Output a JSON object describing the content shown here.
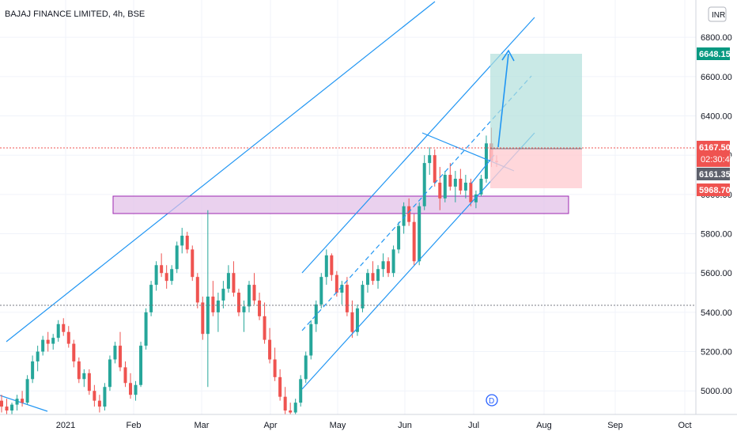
{
  "header": {
    "title": "BAJAJ FINANCE LIMITED, 4h, BSE",
    "currency": "INR"
  },
  "colors": {
    "up": "#26a69a",
    "down": "#ef5350",
    "trendline": "#2196f3",
    "zone_fill": "#e1bee7",
    "zone_stroke": "#9c27b0",
    "target_fill": "#b2dfdb",
    "stop_fill": "#ffcdd2",
    "axis_bg": "#ffffff",
    "grid": "#f0f3fa"
  },
  "price_tags": {
    "target": "6648.15",
    "last": "6167.50",
    "countdown": "02:30:49",
    "entry": "6161.35",
    "stop": "5968.70"
  },
  "marker": {
    "label": "D"
  },
  "chart_data": {
    "type": "candlestick",
    "title": "BAJAJ FINANCE LIMITED, 4h, BSE",
    "ylim": [
      4880,
      6990
    ],
    "y_ticks": [
      "5000.00",
      "5200.00",
      "5400.00",
      "5600.00",
      "5800.00",
      "6000.00",
      "6200.00",
      "6400.00",
      "6600.00",
      "6800.00"
    ],
    "x_ticks": [
      "2021",
      "Feb",
      "Mar",
      "Apr",
      "May",
      "Jun",
      "Jul",
      "Aug",
      "Sep",
      "Oct"
    ],
    "horizontal_levels": [
      6167.5,
      5370
    ],
    "series": [
      {
        "values": [
          [
            4950,
            4980,
            4890,
            4920
          ],
          [
            4920,
            4960,
            4860,
            4900
          ],
          [
            4900,
            4940,
            4870,
            4930
          ],
          [
            4930,
            4980,
            4900,
            4960
          ],
          [
            4960,
            5000,
            4920,
            4940
          ],
          [
            4940,
            5080,
            4930,
            5060
          ],
          [
            5060,
            5180,
            5040,
            5150
          ],
          [
            5150,
            5230,
            5100,
            5200
          ],
          [
            5200,
            5280,
            5180,
            5260
          ],
          [
            5260,
            5300,
            5200,
            5240
          ],
          [
            5240,
            5290,
            5210,
            5270
          ],
          [
            5270,
            5360,
            5250,
            5340
          ],
          [
            5340,
            5370,
            5280,
            5300
          ],
          [
            5300,
            5330,
            5220,
            5240
          ],
          [
            5240,
            5260,
            5120,
            5150
          ],
          [
            5150,
            5170,
            5040,
            5060
          ],
          [
            5060,
            5110,
            5020,
            5090
          ],
          [
            5090,
            5110,
            4980,
            5000
          ],
          [
            5000,
            5030,
            4920,
            4950
          ],
          [
            4950,
            4980,
            4890,
            4920
          ],
          [
            4920,
            5040,
            4900,
            5020
          ],
          [
            5020,
            5180,
            5000,
            5160
          ],
          [
            5160,
            5250,
            5140,
            5230
          ],
          [
            5230,
            5300,
            5100,
            5120
          ],
          [
            5120,
            5150,
            5020,
            5040
          ],
          [
            5040,
            5090,
            4960,
            4980
          ],
          [
            4980,
            5050,
            4950,
            5030
          ],
          [
            5030,
            5250,
            5020,
            5230
          ],
          [
            5230,
            5420,
            5210,
            5400
          ],
          [
            5400,
            5560,
            5380,
            5540
          ],
          [
            5540,
            5660,
            5510,
            5640
          ],
          [
            5640,
            5700,
            5580,
            5600
          ],
          [
            5600,
            5640,
            5520,
            5560
          ],
          [
            5560,
            5640,
            5540,
            5620
          ],
          [
            5620,
            5760,
            5600,
            5740
          ],
          [
            5740,
            5830,
            5700,
            5790
          ],
          [
            5790,
            5810,
            5700,
            5720
          ],
          [
            5720,
            5740,
            5560,
            5580
          ],
          [
            5580,
            5600,
            5420,
            5450
          ],
          [
            5450,
            5480,
            5260,
            5290
          ],
          [
            5290,
            5920,
            5020,
            5480
          ],
          [
            5480,
            5560,
            5380,
            5400
          ],
          [
            5400,
            5500,
            5300,
            5460
          ],
          [
            5460,
            5560,
            5420,
            5520
          ],
          [
            5520,
            5640,
            5500,
            5600
          ],
          [
            5600,
            5660,
            5480,
            5500
          ],
          [
            5500,
            5520,
            5380,
            5400
          ],
          [
            5400,
            5460,
            5300,
            5430
          ],
          [
            5430,
            5560,
            5400,
            5540
          ],
          [
            5540,
            5600,
            5440,
            5460
          ],
          [
            5460,
            5500,
            5360,
            5380
          ],
          [
            5380,
            5450,
            5240,
            5260
          ],
          [
            5260,
            5320,
            5140,
            5160
          ],
          [
            5160,
            5220,
            5050,
            5070
          ],
          [
            5070,
            5110,
            4950,
            4970
          ],
          [
            4970,
            5020,
            4880,
            4900
          ],
          [
            4900,
            4940,
            4860,
            4890
          ],
          [
            4890,
            4960,
            4880,
            4940
          ],
          [
            4940,
            5080,
            4920,
            5060
          ],
          [
            5060,
            5200,
            5040,
            5180
          ],
          [
            5180,
            5360,
            5160,
            5340
          ],
          [
            5340,
            5460,
            5300,
            5440
          ],
          [
            5440,
            5600,
            5420,
            5580
          ],
          [
            5580,
            5720,
            5540,
            5690
          ],
          [
            5690,
            5700,
            5560,
            5590
          ],
          [
            5590,
            5610,
            5480,
            5500
          ],
          [
            5500,
            5560,
            5440,
            5540
          ],
          [
            5540,
            5580,
            5380,
            5400
          ],
          [
            5400,
            5460,
            5270,
            5300
          ],
          [
            5300,
            5440,
            5280,
            5420
          ],
          [
            5420,
            5560,
            5400,
            5540
          ],
          [
            5540,
            5620,
            5500,
            5600
          ],
          [
            5600,
            5660,
            5540,
            5560
          ],
          [
            5560,
            5640,
            5520,
            5620
          ],
          [
            5620,
            5700,
            5580,
            5660
          ],
          [
            5660,
            5680,
            5580,
            5600
          ],
          [
            5600,
            5740,
            5580,
            5720
          ],
          [
            5720,
            5860,
            5700,
            5840
          ],
          [
            5840,
            5960,
            5800,
            5940
          ],
          [
            5940,
            5980,
            5840,
            5860
          ],
          [
            5860,
            5900,
            5640,
            5660
          ],
          [
            5660,
            5960,
            5640,
            5940
          ],
          [
            5940,
            6200,
            5920,
            6160
          ],
          [
            6160,
            6240,
            6100,
            6200
          ],
          [
            6200,
            6230,
            6040,
            6060
          ],
          [
            6060,
            6140,
            5920,
            5980
          ],
          [
            5980,
            6120,
            5960,
            6100
          ],
          [
            6100,
            6160,
            6020,
            6040
          ],
          [
            6040,
            6120,
            5960,
            6080
          ],
          [
            6080,
            6130,
            6000,
            6020
          ],
          [
            6020,
            6100,
            5980,
            6060
          ],
          [
            6060,
            6080,
            5940,
            5960
          ],
          [
            5960,
            6020,
            5930,
            6000
          ],
          [
            6000,
            6100,
            5990,
            6080
          ],
          [
            6080,
            6300,
            6060,
            6260
          ],
          [
            6260,
            6340,
            6140,
            6170
          ],
          [
            6170,
            6200,
            6140,
            6167.5
          ]
        ]
      }
    ],
    "annotations": {
      "resistance_zone": [
        5845,
        5930
      ],
      "target_level": 6648.15,
      "entry_level": 6161.35,
      "stop_level": 5968.7
    }
  }
}
